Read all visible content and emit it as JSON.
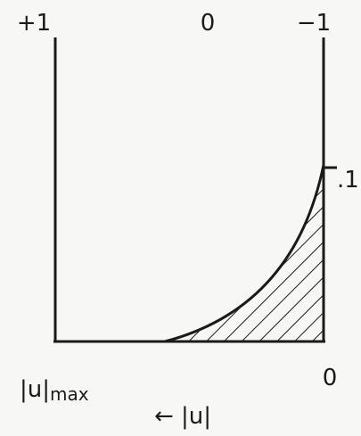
{
  "top_labels": {
    "left": "+1",
    "middle": "0",
    "right": "−1"
  },
  "right_label": ".1",
  "bottom_left_label": {
    "main": "|u|",
    "subscript": "max"
  },
  "bottom_right_label": "0",
  "axis_label": "← |u|"
}
